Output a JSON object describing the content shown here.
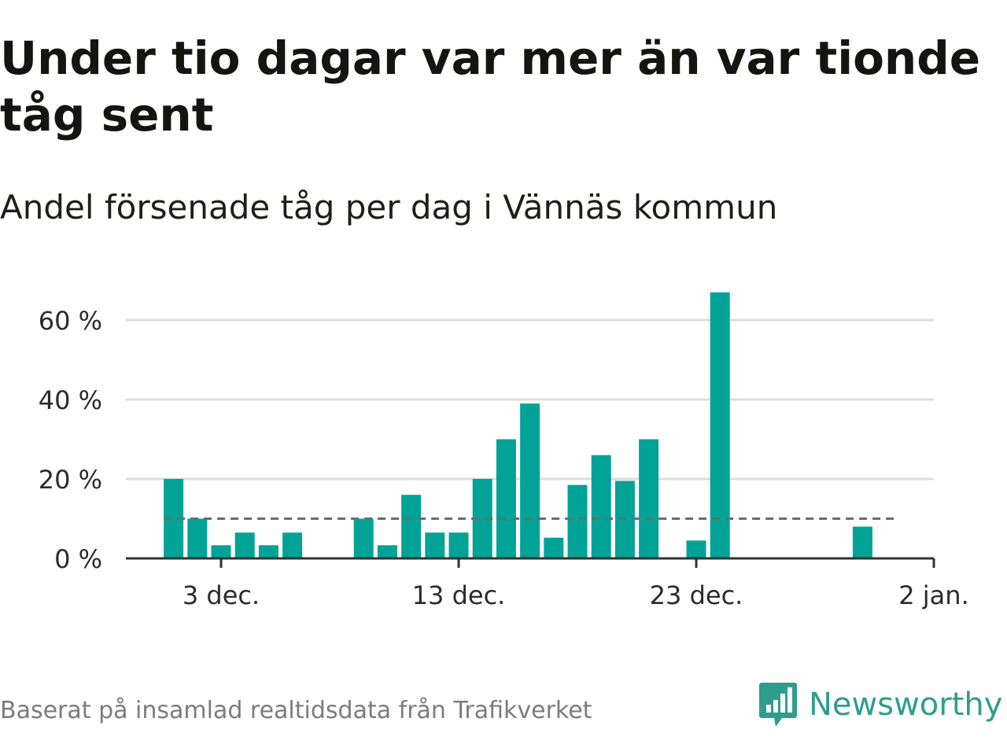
{
  "header": {
    "title": "Under tio dagar var mer än var tionde tåg sent",
    "subtitle": "Andel försenade tåg per dag i Vännäs kommun"
  },
  "footer": {
    "source": "Baserat på insamlad realtidsdata från Trafikverket",
    "brand": "Newsworthy",
    "brand_icon": "speech-bubble-bar-chart-icon"
  },
  "colors": {
    "bar": "#00a396",
    "grid": "#dddddd",
    "axis": "#333333",
    "reference_line": "#6b6b73",
    "brand": "#2f9d8e",
    "footer_text": "#7c7c7c"
  },
  "chart_data": {
    "type": "bar",
    "title": "Under tio dagar var mer än var tionde tåg sent",
    "subtitle": "Andel försenade tåg per dag i Vännäs kommun",
    "xlabel": "",
    "ylabel": "",
    "x_tick_labels": [
      "3 dec.",
      "13 dec.",
      "23 dec.",
      "2 jan."
    ],
    "y_tick_labels": [
      "0 %",
      "20 %",
      "40 %",
      "60 %"
    ],
    "y_ticks": [
      0,
      20,
      40,
      60
    ],
    "ylim": [
      0,
      70
    ],
    "grid": true,
    "reference_line": {
      "value": 10,
      "style": "dashed",
      "from_date": "2018-12-01",
      "to_date": "2018-12-31"
    },
    "x": [
      "2018-12-01",
      "2018-12-02",
      "2018-12-03",
      "2018-12-04",
      "2018-12-05",
      "2018-12-06",
      "2018-12-09",
      "2018-12-10",
      "2018-12-11",
      "2018-12-12",
      "2018-12-13",
      "2018-12-14",
      "2018-12-15",
      "2018-12-16",
      "2018-12-17",
      "2018-12-18",
      "2018-12-19",
      "2018-12-20",
      "2018-12-21",
      "2018-12-23",
      "2018-12-24",
      "2018-12-30"
    ],
    "values": [
      20,
      10,
      3.3,
      6.5,
      3.3,
      6.5,
      10,
      3.3,
      16,
      6.5,
      6.5,
      20,
      30,
      39,
      5.2,
      18.5,
      26,
      19.5,
      30,
      4.5,
      67,
      8
    ]
  }
}
